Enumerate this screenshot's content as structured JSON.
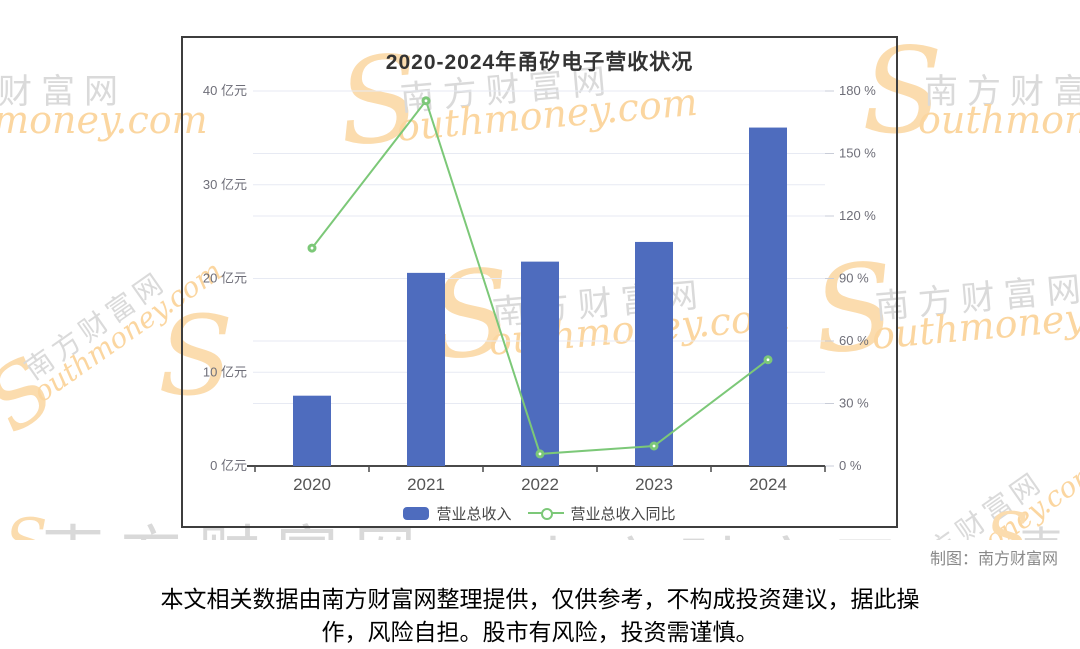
{
  "chart": {
    "title": "2020-2024年甬矽电子营收状况",
    "left_axis": {
      "ticks": [
        "40 亿元",
        "30 亿元",
        "20 亿元",
        "10 亿元",
        "0 亿元"
      ],
      "max": 40,
      "min": 0
    },
    "right_axis": {
      "ticks": [
        "180 %",
        "150 %",
        "120 %",
        "90 %",
        "60 %",
        "30 %",
        "0 %"
      ],
      "max": 180,
      "min": 0
    },
    "legend": [
      {
        "label": "营业总收入",
        "type": "bar"
      },
      {
        "label": "营业总收入同比",
        "type": "line"
      }
    ],
    "colors": {
      "bar": "#4e6cbe",
      "line": "#7cc878",
      "grid": "#e7eaf3",
      "axis": "#4a4a4a",
      "tick_label": "#6e6e78",
      "year_label": "#555555"
    }
  },
  "chart_data": {
    "type": "bar+line combo",
    "title": "2020-2024年甬矽电子营收状况",
    "categories": [
      "2020",
      "2021",
      "2022",
      "2023",
      "2024"
    ],
    "series": [
      {
        "name": "营业总收入",
        "type": "bar",
        "axis": "left",
        "unit": "亿元",
        "values": [
          7.5,
          20.6,
          21.8,
          23.9,
          36.1
        ]
      },
      {
        "name": "营业总收入同比",
        "type": "line",
        "axis": "right",
        "unit": "%",
        "values": [
          104.6,
          175.3,
          5.8,
          9.6,
          51
        ]
      }
    ],
    "left_ylim": [
      0,
      40
    ],
    "right_ylim": [
      0,
      180
    ],
    "grid": true,
    "legend_position": "bottom"
  },
  "credit": "制图：南方财富网",
  "disclaimer": {
    "line1": "本文相关数据由南方财富网整理提供，仅供参考，不构成投资建议，据此操",
    "line2": "作，风险自担。股市有风险，投资需谨慎。"
  },
  "watermark": {
    "zh": "南方财富网",
    "en": "outhmoney.com",
    "s": "S",
    "zh_partial": "南方"
  }
}
